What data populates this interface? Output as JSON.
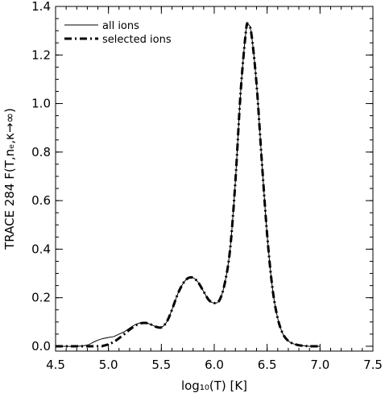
{
  "chart_data": {
    "type": "line",
    "xlabel": "log₁₀(T)  [K]",
    "ylabel": "TRACE 284  F(T,nₑ,κ→∞)",
    "xlim": [
      4.5,
      7.5
    ],
    "ylim": [
      -0.02,
      1.4
    ],
    "xticks": [
      4.5,
      5.0,
      5.5,
      6.0,
      6.5,
      7.0,
      7.5
    ],
    "xtick_labels": [
      "4.5",
      "5.0",
      "5.5",
      "6.0",
      "6.5",
      "7.0",
      "7.5"
    ],
    "yticks": [
      0.0,
      0.2,
      0.4,
      0.6,
      0.8,
      1.0,
      1.2,
      1.4
    ],
    "ytick_labels": [
      "0.0",
      "0.2",
      "0.4",
      "0.6",
      "0.8",
      "1.0",
      "1.2",
      "1.4"
    ],
    "grid": false,
    "legend_position": "top-left",
    "series": [
      {
        "name": "all ions",
        "style": "solid",
        "color": "#000000",
        "x": [
          4.5,
          4.7,
          4.8,
          4.85,
          4.9,
          4.95,
          5.0,
          5.05,
          5.1,
          5.15,
          5.2,
          5.25,
          5.3,
          5.35,
          5.4,
          5.45,
          5.5,
          5.55,
          5.6,
          5.65,
          5.7,
          5.75,
          5.8,
          5.85,
          5.9,
          5.95,
          6.0,
          6.05,
          6.1,
          6.15,
          6.2,
          6.25,
          6.3,
          6.32,
          6.35,
          6.4,
          6.45,
          6.5,
          6.55,
          6.6,
          6.65,
          6.7,
          6.75,
          6.8,
          6.85,
          6.9,
          7.0
        ],
        "y": [
          0.0,
          0.0,
          0.005,
          0.015,
          0.025,
          0.032,
          0.036,
          0.04,
          0.05,
          0.06,
          0.075,
          0.088,
          0.096,
          0.096,
          0.09,
          0.08,
          0.078,
          0.1,
          0.15,
          0.21,
          0.255,
          0.28,
          0.282,
          0.262,
          0.225,
          0.19,
          0.178,
          0.19,
          0.26,
          0.4,
          0.68,
          1.05,
          1.3,
          1.325,
          1.29,
          1.08,
          0.76,
          0.46,
          0.24,
          0.115,
          0.05,
          0.022,
          0.01,
          0.004,
          0.002,
          0.0,
          0.0
        ]
      },
      {
        "name": "selected ions",
        "style": "dash-dot",
        "color": "#000000",
        "x": [
          4.5,
          4.9,
          4.95,
          5.0,
          5.05,
          5.1,
          5.15,
          5.2,
          5.25,
          5.3,
          5.35,
          5.4,
          5.45,
          5.5,
          5.55,
          5.6,
          5.65,
          5.7,
          5.75,
          5.8,
          5.85,
          5.9,
          5.95,
          6.0,
          6.05,
          6.1,
          6.15,
          6.2,
          6.25,
          6.3,
          6.32,
          6.35,
          6.4,
          6.45,
          6.5,
          6.55,
          6.6,
          6.65,
          6.7,
          6.75,
          6.8,
          6.85,
          6.9,
          7.0
        ],
        "y": [
          0.0,
          0.0,
          0.002,
          0.008,
          0.018,
          0.033,
          0.05,
          0.068,
          0.084,
          0.094,
          0.096,
          0.09,
          0.08,
          0.078,
          0.1,
          0.15,
          0.21,
          0.255,
          0.28,
          0.282,
          0.262,
          0.225,
          0.19,
          0.178,
          0.19,
          0.26,
          0.4,
          0.68,
          1.05,
          1.3,
          1.325,
          1.29,
          1.08,
          0.76,
          0.46,
          0.24,
          0.115,
          0.05,
          0.022,
          0.01,
          0.004,
          0.002,
          0.0,
          0.0
        ]
      }
    ]
  }
}
